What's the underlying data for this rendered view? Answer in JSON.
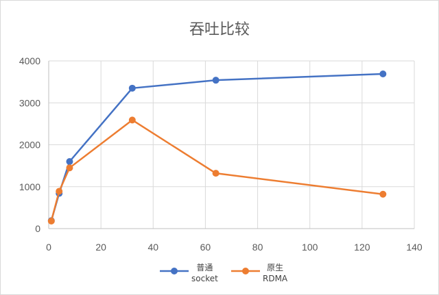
{
  "chart_data": {
    "type": "line",
    "title": "吞吐比较",
    "xlabel": "",
    "ylabel": "",
    "xlim": [
      0,
      140
    ],
    "ylim": [
      0,
      4000
    ],
    "xticks": [
      "0",
      "20",
      "40",
      "60",
      "80",
      "100",
      "120",
      "140"
    ],
    "yticks": [
      "0",
      "1000",
      "2000",
      "3000",
      "4000"
    ],
    "grid": true,
    "legend_position": "bottom",
    "series": [
      {
        "name_line1": "普通",
        "name_line2": "socket",
        "color": "#4472C4",
        "x": [
          1,
          4,
          8,
          32,
          64,
          128
        ],
        "y": [
          190,
          840,
          1600,
          3350,
          3540,
          3690
        ]
      },
      {
        "name_line1": "原生",
        "name_line2": "RDMA",
        "color": "#ED7D31",
        "x": [
          1,
          4,
          8,
          32,
          64,
          128
        ],
        "y": [
          180,
          890,
          1450,
          2590,
          1320,
          820
        ]
      }
    ]
  }
}
